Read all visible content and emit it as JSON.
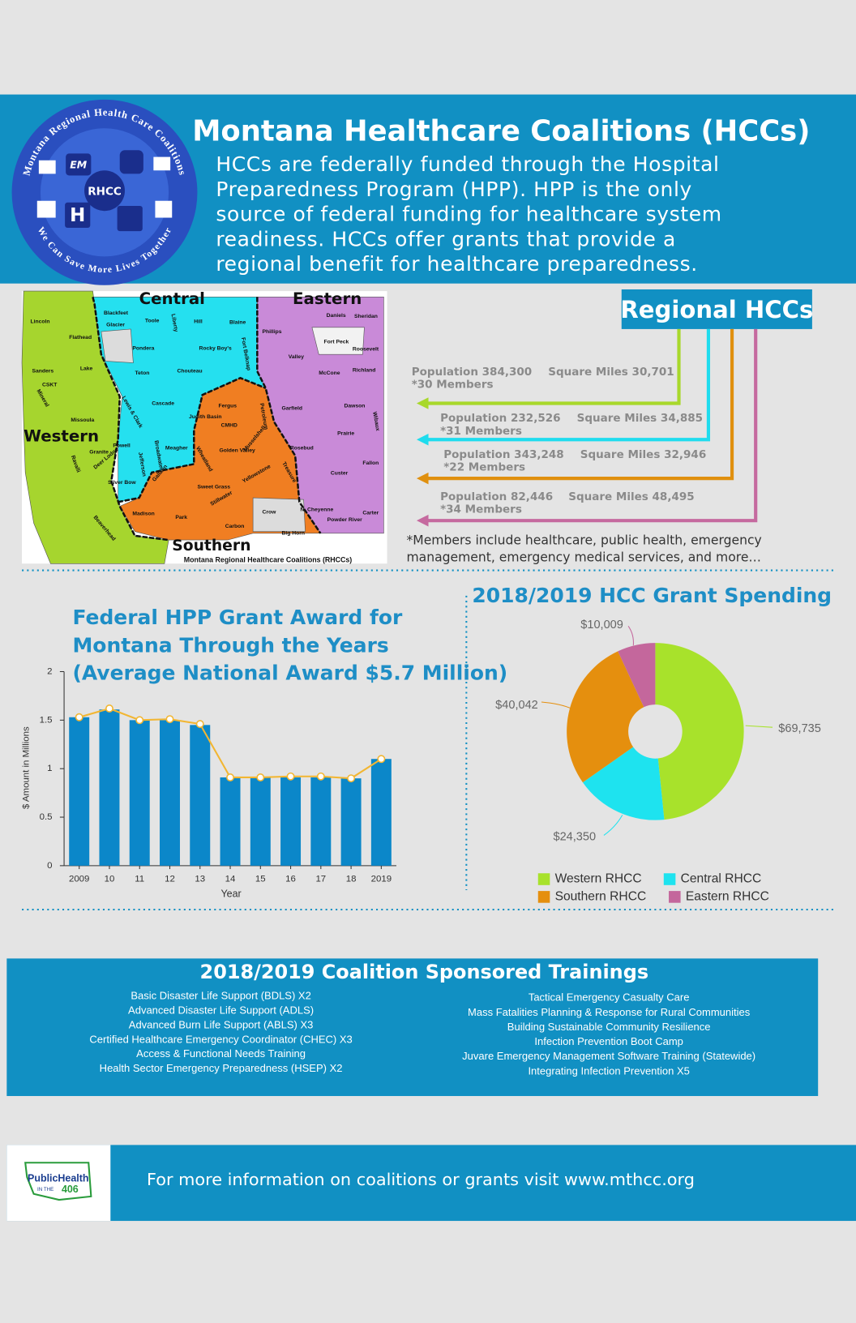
{
  "header": {
    "title": "Montana Healthcare Coalitions (HCCs)",
    "paragraph": [
      "HCCs are federally funded through the Hospital",
      "Preparedness Program (HPP). HPP is the only",
      "source of federal funding for healthcare system",
      "readiness. HCCs offer grants that provide a",
      "regional benefit for healthcare preparedness."
    ],
    "logo": {
      "ring_top": "Montana Regional Health Care Coalitions",
      "ring_bottom": "We Can Save More Lives Together",
      "center": "RHCC",
      "badges": [
        "EM",
        "H"
      ]
    }
  },
  "map": {
    "regions": [
      "Central",
      "Eastern",
      "Western",
      "Southern"
    ],
    "caption": "Montana Regional Healthcare Coalitions (RHCCs)",
    "counties": [
      "Lincoln",
      "Flathead",
      "Blackfeet",
      "Glacier",
      "Toole",
      "Liberty",
      "Hill",
      "Blaine",
      "Phillips",
      "Valley",
      "Daniels",
      "Sheridan",
      "Fort Peck",
      "Roosevelt",
      "Sanders",
      "Lake",
      "CSKT",
      "Mineral",
      "Missoula",
      "Pondera",
      "Rocky Boy's",
      "Fort Belknap",
      "Teton",
      "Chouteau",
      "McCone",
      "Richland",
      "Cascade",
      "Lewis & Clark",
      "Fergus",
      "Judith Basin",
      "CMHD",
      "Petroleum",
      "Garfield",
      "Dawson",
      "Wibaux",
      "Powell",
      "Granite",
      "Meagher",
      "Broadwater",
      "Jefferson",
      "Wheatland",
      "Golden Valley",
      "Musselshell",
      "Rosebud",
      "Prairie",
      "Fallon",
      "Ravalli",
      "Deer Lodge",
      "Silver Bow",
      "Gallatin",
      "Sweet Grass",
      "Stillwater",
      "Yellowstone",
      "Treasure",
      "Custer",
      "Madison",
      "Park",
      "Carbon",
      "Crow",
      "N. Cheyenne",
      "Big Horn",
      "Powder River",
      "Carter",
      "Beaverhead"
    ]
  },
  "regional": {
    "title": "Regional HCCs",
    "regions": [
      {
        "population": "Population 384,300",
        "area": "Square Miles 30,701",
        "members": "*30 Members",
        "color": "#a8d82b"
      },
      {
        "population": "Population 232,526",
        "area": "Square Miles 34,885",
        "members": "*31 Members",
        "color": "#1fdcee"
      },
      {
        "population": "Population 343,248",
        "area": "Square Miles 32,946",
        "members": "*22 Members",
        "color": "#e0900f"
      },
      {
        "population": "Population 82,446",
        "area": "Square Miles 48,495",
        "members": "*34 Members",
        "color": "#c56a9f"
      }
    ],
    "note": [
      "*Members include healthcare, public health, emergency",
      "management, emergency medical services, and more…"
    ]
  },
  "chart_data": [
    {
      "type": "bar",
      "title": [
        "Federal HPP Grant Award for",
        "Montana Through the Years",
        "(Average National Award $5.7 Million)"
      ],
      "x_label": "Year",
      "y_label": "$ Amount in Millions",
      "categories": [
        "2009",
        "10",
        "11",
        "12",
        "13",
        "14",
        "15",
        "16",
        "17",
        "18",
        "2019"
      ],
      "series": [
        {
          "type": "bar",
          "color": "#0b87c9",
          "values": [
            1.53,
            1.61,
            1.5,
            1.5,
            1.45,
            0.91,
            0.91,
            0.91,
            0.91,
            0.9,
            1.1
          ]
        },
        {
          "type": "line",
          "color": "#f2b632",
          "values": [
            1.53,
            1.62,
            1.5,
            1.51,
            1.46,
            0.91,
            0.91,
            0.92,
            0.92,
            0.9,
            1.1
          ]
        }
      ],
      "ylim": [
        0,
        2
      ],
      "yticks": [
        0,
        0.5,
        1,
        1.5,
        2
      ]
    },
    {
      "type": "pie",
      "title": "2018/2019 HCC Grant Spending",
      "categories": [
        "Western RHCC",
        "Central RHCC",
        "Southern RHCC",
        "Eastern RHCC"
      ],
      "values": [
        69735,
        24350,
        40042,
        10009
      ],
      "value_labels": [
        "$69,735",
        "$24,350",
        "$40,042",
        "$10,009"
      ],
      "colors": [
        "#a8e22b",
        "#1ee3ef",
        "#e58f0e",
        "#c4679c"
      ]
    }
  ],
  "trainings": {
    "title": "2018/2019 Coalition Sponsored Trainings",
    "left": [
      "Basic Disaster Life Support (BDLS) X2",
      "Advanced Disaster Life Support (ADLS)",
      "Advanced Burn Life Support (ABLS) X3",
      "Certified Healthcare Emergency Coordinator (CHEC) X3",
      "Access & Functional Needs Training",
      "Health Sector Emergency Preparedness (HSEP) X2"
    ],
    "right": [
      "Tactical Emergency Casualty Care",
      "Mass Fatalities Planning & Response for Rural Communities",
      "Building Sustainable Community Resilience",
      "Infection Prevention Boot Camp",
      "Juvare Emergency Management Software Training (Statewide)",
      "Integrating Infection Prevention X5"
    ]
  },
  "footer": {
    "text": "For more information on coalitions or grants visit www.mthcc.org",
    "logo": [
      "PublicHealth",
      "IN THE",
      "406"
    ]
  }
}
